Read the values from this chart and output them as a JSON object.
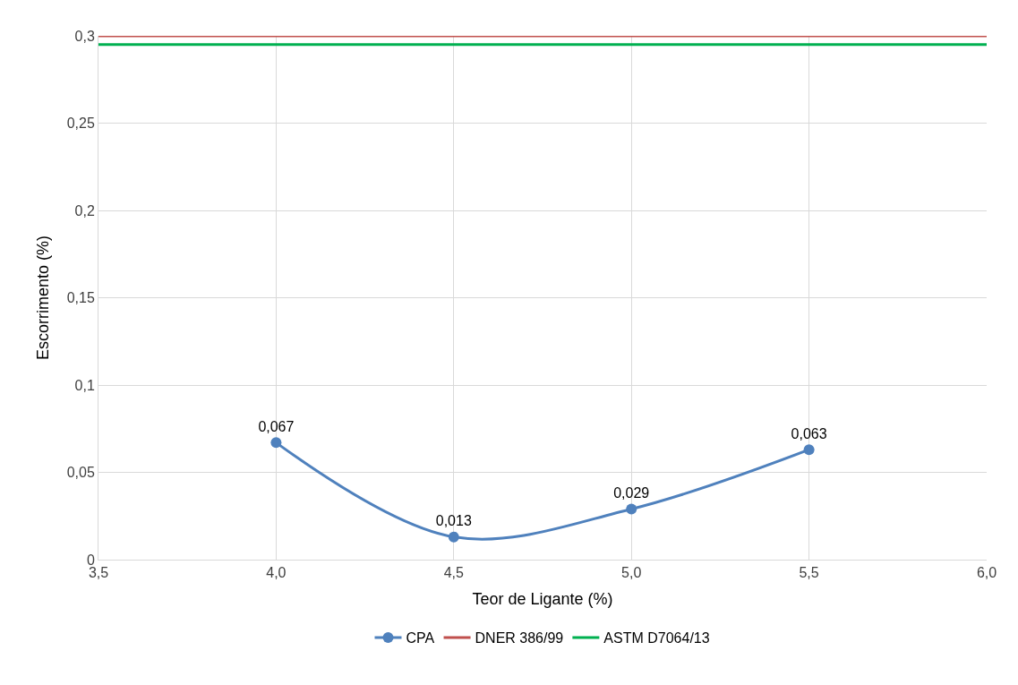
{
  "chart_data": {
    "type": "line",
    "xlabel": "Teor de Ligante (%)",
    "ylabel": "Escorrimento (%)",
    "xlim": [
      3.5,
      6
    ],
    "xticks": [
      {
        "value": 3.5,
        "label": "3,5"
      },
      {
        "value": 4.0,
        "label": "4,0"
      },
      {
        "value": 4.5,
        "label": "4,5"
      },
      {
        "value": 5.0,
        "label": "5,0"
      },
      {
        "value": 5.5,
        "label": "5,5"
      },
      {
        "value": 6.0,
        "label": "6,0"
      }
    ],
    "ylim": [
      0,
      0.3
    ],
    "yticks": [
      0,
      {
        "value": 0.05,
        "label": "0,05"
      },
      {
        "value": 0.1,
        "label": "0,1"
      },
      {
        "value": 0.15,
        "label": "0,15"
      },
      {
        "value": 0.2,
        "label": "0,2"
      },
      {
        "value": 0.25,
        "label": "0,25"
      },
      {
        "value": 0.3,
        "label": "0,3"
      }
    ],
    "grid": true,
    "legend": "bottom",
    "series": [
      {
        "name": "CPA",
        "color": "#4f81bd",
        "x": [
          4.0,
          4.5,
          5.0,
          5.5
        ],
        "values": [
          0.067,
          0.013,
          0.029,
          0.063
        ],
        "value_labels": [
          "0,067",
          "0,013",
          "0,029",
          "0,063"
        ],
        "marker": "circle"
      },
      {
        "name": "DNER 386/99",
        "color": "#c0504d",
        "x": [
          3.5,
          6.0
        ],
        "values": [
          0.3,
          0.3
        ],
        "marker": "none"
      },
      {
        "name": "ASTM D7064/13",
        "color": "#00b050",
        "x": [
          3.5,
          6.0
        ],
        "values": [
          0.295,
          0.295
        ],
        "marker": "none"
      }
    ]
  }
}
